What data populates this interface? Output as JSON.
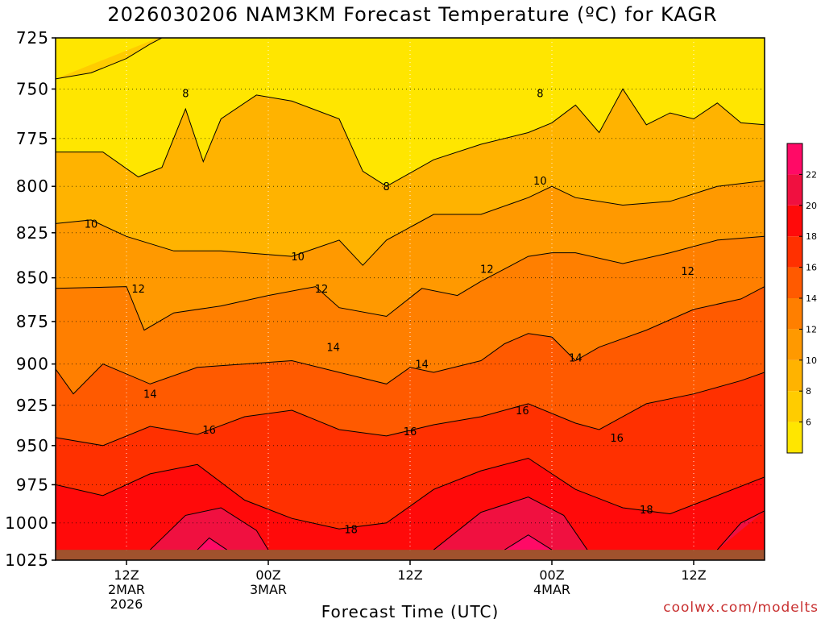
{
  "title": "2026030206 NAM3KM Forecast Temperature (ºC) for KAGR",
  "credit": "coolwx.com/modelts",
  "chart_data": {
    "type": "heatmap",
    "title": "2026030206 NAM3KM Forecast Temperature (ºC) for KAGR",
    "xlabel": "Forecast Time (UTC)",
    "ylabel": "",
    "x_range_hours_after_init": [
      0,
      60
    ],
    "y_range_hpa": [
      725,
      1025
    ],
    "y_scale": "log",
    "y_ticks": [
      725,
      750,
      775,
      800,
      825,
      850,
      875,
      900,
      925,
      950,
      975,
      1000,
      1025
    ],
    "x_ticks": [
      {
        "hours_after_init": 6,
        "label_lines": [
          "12Z",
          "2MAR",
          "2026"
        ]
      },
      {
        "hours_after_init": 18,
        "label_lines": [
          "00Z",
          "3MAR"
        ]
      },
      {
        "hours_after_init": 30,
        "label_lines": [
          "12Z"
        ]
      },
      {
        "hours_after_init": 42,
        "label_lines": [
          "00Z",
          "4MAR"
        ]
      },
      {
        "hours_after_init": 54,
        "label_lines": [
          "12Z"
        ]
      }
    ],
    "grid": "dotted",
    "surface_pressure_hpa": 1018,
    "surface_color": "#a0522d",
    "colorbar": {
      "placement": "right",
      "boundaries": [
        4,
        6,
        8,
        10,
        12,
        14,
        16,
        18,
        20,
        22,
        24
      ],
      "labels": [
        6,
        8,
        10,
        12,
        14,
        16,
        18,
        20,
        22
      ],
      "colors": [
        "#ffe600",
        "#ffcc00",
        "#ffb300",
        "#ff9900",
        "#ff7f00",
        "#ff5a00",
        "#ff3000",
        "#ff0a0a",
        "#f01040",
        "#ff0a66"
      ]
    },
    "isotherm_c": [
      8,
      10,
      12,
      14,
      16,
      18,
      20,
      22
    ],
    "isotherms": [
      {
        "value": 6,
        "points": [
          [
            0,
            745
          ],
          [
            3,
            742
          ],
          [
            6,
            735
          ],
          [
            8,
            728
          ],
          [
            10,
            722
          ]
        ]
      },
      {
        "value": 8,
        "points": [
          [
            0,
            782
          ],
          [
            4,
            782
          ],
          [
            7,
            795
          ],
          [
            9,
            790
          ],
          [
            11,
            760
          ],
          [
            12.5,
            787
          ],
          [
            14,
            765
          ],
          [
            17,
            753
          ],
          [
            20,
            756
          ],
          [
            24,
            765
          ],
          [
            26,
            792
          ],
          [
            28,
            800
          ],
          [
            32,
            786
          ],
          [
            36,
            778
          ],
          [
            40,
            772
          ],
          [
            42,
            767
          ],
          [
            44,
            758
          ],
          [
            46,
            772
          ],
          [
            48,
            750
          ],
          [
            50,
            768
          ],
          [
            52,
            762
          ],
          [
            54,
            765
          ],
          [
            56,
            757
          ],
          [
            58,
            767
          ],
          [
            60,
            768
          ]
        ]
      },
      {
        "value": 10,
        "points": [
          [
            0,
            820
          ],
          [
            3,
            818
          ],
          [
            6,
            827
          ],
          [
            10,
            835
          ],
          [
            14,
            835
          ],
          [
            20,
            838
          ],
          [
            24,
            829
          ],
          [
            26,
            843
          ],
          [
            28,
            829
          ],
          [
            32,
            815
          ],
          [
            36,
            815
          ],
          [
            40,
            806
          ],
          [
            42,
            800
          ],
          [
            44,
            806
          ],
          [
            48,
            810
          ],
          [
            52,
            808
          ],
          [
            56,
            800
          ],
          [
            60,
            797
          ]
        ]
      },
      {
        "value": 12,
        "points": [
          [
            0,
            856
          ],
          [
            6,
            855
          ],
          [
            7.5,
            880
          ],
          [
            10,
            870
          ],
          [
            14,
            866
          ],
          [
            18,
            860
          ],
          [
            22,
            855
          ],
          [
            24,
            867
          ],
          [
            28,
            872
          ],
          [
            31,
            856
          ],
          [
            34,
            860
          ],
          [
            36,
            852
          ],
          [
            40,
            838
          ],
          [
            42,
            836
          ],
          [
            44,
            836
          ],
          [
            48,
            842
          ],
          [
            52,
            836
          ],
          [
            56,
            829
          ],
          [
            60,
            827
          ]
        ]
      },
      {
        "value": 14,
        "points": [
          [
            0,
            903
          ],
          [
            1.5,
            918
          ],
          [
            4,
            900
          ],
          [
            8,
            912
          ],
          [
            12,
            902
          ],
          [
            16,
            900
          ],
          [
            20,
            898
          ],
          [
            24,
            905
          ],
          [
            28,
            912
          ],
          [
            30,
            902
          ],
          [
            32,
            905
          ],
          [
            36,
            898
          ],
          [
            38,
            888
          ],
          [
            40,
            882
          ],
          [
            42,
            884
          ],
          [
            44,
            898
          ],
          [
            46,
            890
          ],
          [
            50,
            880
          ],
          [
            54,
            868
          ],
          [
            58,
            862
          ],
          [
            60,
            855
          ]
        ]
      },
      {
        "value": 16,
        "points": [
          [
            0,
            945
          ],
          [
            4,
            950
          ],
          [
            8,
            938
          ],
          [
            12,
            943
          ],
          [
            16,
            932
          ],
          [
            20,
            928
          ],
          [
            24,
            940
          ],
          [
            28,
            944
          ],
          [
            32,
            937
          ],
          [
            36,
            932
          ],
          [
            40,
            924
          ],
          [
            44,
            936
          ],
          [
            46,
            940
          ],
          [
            50,
            924
          ],
          [
            54,
            918
          ],
          [
            58,
            910
          ],
          [
            60,
            905
          ]
        ]
      },
      {
        "value": 18,
        "points": [
          [
            0,
            975
          ],
          [
            4,
            982
          ],
          [
            8,
            968
          ],
          [
            12,
            962
          ],
          [
            16,
            985
          ],
          [
            20,
            997
          ],
          [
            24,
            1004
          ],
          [
            28,
            1000
          ],
          [
            32,
            978
          ],
          [
            36,
            966
          ],
          [
            40,
            958
          ],
          [
            44,
            978
          ],
          [
            48,
            990
          ],
          [
            52,
            994
          ],
          [
            56,
            982
          ],
          [
            60,
            970
          ]
        ]
      },
      {
        "value": 20,
        "points": [
          [
            8,
            1018
          ],
          [
            11,
            995
          ],
          [
            14,
            990
          ],
          [
            17,
            1005
          ],
          [
            18,
            1018
          ]
        ]
      },
      {
        "value": 20,
        "points": [
          [
            32,
            1018
          ],
          [
            36,
            993
          ],
          [
            40,
            983
          ],
          [
            43,
            995
          ],
          [
            45,
            1018
          ]
        ]
      },
      {
        "value": 20,
        "points": [
          [
            56,
            1018
          ],
          [
            58,
            1000
          ],
          [
            60,
            992
          ]
        ]
      },
      {
        "value": 22,
        "points": [
          [
            12,
            1018
          ],
          [
            13,
            1010
          ],
          [
            14.5,
            1018
          ]
        ]
      },
      {
        "value": 22,
        "points": [
          [
            38,
            1018
          ],
          [
            40,
            1008
          ],
          [
            42,
            1018
          ]
        ]
      }
    ],
    "isotherm_labels": [
      {
        "text": "8",
        "hours_after_init": 11,
        "hpa": 752
      },
      {
        "text": "8",
        "hours_after_init": 28,
        "hpa": 800
      },
      {
        "text": "8",
        "hours_after_init": 41,
        "hpa": 752
      },
      {
        "text": "10",
        "hours_after_init": 3,
        "hpa": 820
      },
      {
        "text": "10",
        "hours_after_init": 20.5,
        "hpa": 838
      },
      {
        "text": "10",
        "hours_after_init": 41,
        "hpa": 797
      },
      {
        "text": "12",
        "hours_after_init": 7,
        "hpa": 856
      },
      {
        "text": "12",
        "hours_after_init": 22.5,
        "hpa": 856
      },
      {
        "text": "12",
        "hours_after_init": 36.5,
        "hpa": 845
      },
      {
        "text": "12",
        "hours_after_init": 53.5,
        "hpa": 846
      },
      {
        "text": "14",
        "hours_after_init": 8,
        "hpa": 918
      },
      {
        "text": "14",
        "hours_after_init": 23.5,
        "hpa": 890
      },
      {
        "text": "14",
        "hours_after_init": 31,
        "hpa": 900
      },
      {
        "text": "14",
        "hours_after_init": 44,
        "hpa": 896
      },
      {
        "text": "16",
        "hours_after_init": 13,
        "hpa": 940
      },
      {
        "text": "16",
        "hours_after_init": 30,
        "hpa": 941
      },
      {
        "text": "16",
        "hours_after_init": 39.5,
        "hpa": 928
      },
      {
        "text": "16",
        "hours_after_init": 47.5,
        "hpa": 945
      },
      {
        "text": "18",
        "hours_after_init": 25,
        "hpa": 1004
      },
      {
        "text": "18",
        "hours_after_init": 50,
        "hpa": 991
      }
    ]
  }
}
